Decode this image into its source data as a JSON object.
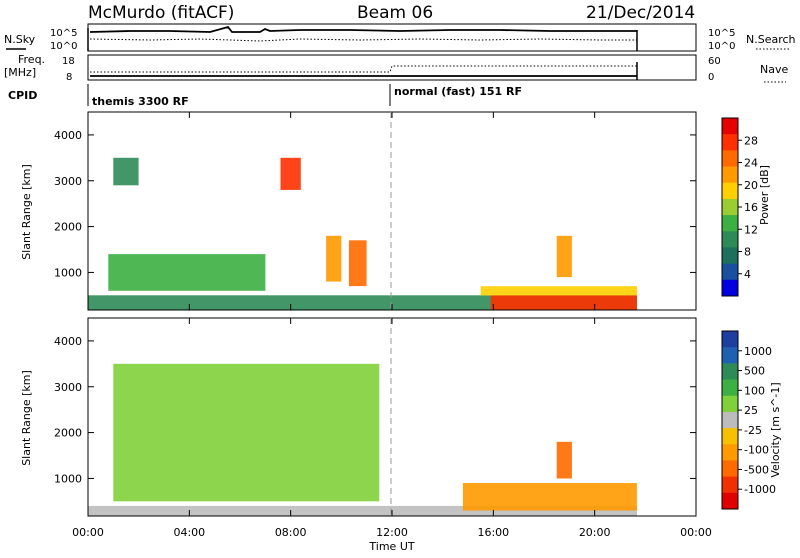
{
  "header": {
    "station": "McMurdo (fitACF)",
    "beam": "Beam 06",
    "date": "21/Dec/2014"
  },
  "strips": {
    "noise": {
      "left_label": "N.Sky",
      "right_label": "N.Search",
      "left_ticks": [
        "10^5",
        "10^0"
      ],
      "right_ticks": [
        "10^5",
        "10^0"
      ]
    },
    "freq": {
      "left_label_top": "Freq.",
      "left_label_bottom": "[MHz]",
      "right_label": "Nave",
      "left_ticks": [
        "18",
        "8"
      ],
      "right_ticks": [
        "60",
        "0"
      ]
    },
    "cpid": {
      "label": "CPID",
      "modes": [
        {
          "name": "themis 3300 RF",
          "start": "00:00",
          "end": "12:00"
        },
        {
          "name": "normal (fast) 151 RF",
          "start": "12:00",
          "end": "21:40"
        }
      ]
    }
  },
  "panels": {
    "power": {
      "ylabel": "Slant Range [km]",
      "cbar_label": "Power [dB]",
      "cbar_ticks": [
        "28",
        "24",
        "20",
        "16",
        "12",
        "8",
        "4"
      ],
      "cbar_colors": [
        "#e60000",
        "#ff3000",
        "#ff6a00",
        "#ff9a00",
        "#ffcf00",
        "#9acd32",
        "#3cb043",
        "#2e8b57",
        "#1e6f5c",
        "#1a4fa0",
        "#0000e0"
      ]
    },
    "velocity": {
      "ylabel": "Slant Range [km]",
      "cbar_label": "Velocity [m s^-1]",
      "cbar_ticks": [
        "1000",
        "500",
        "100",
        "25",
        "-25",
        "-100",
        "-500",
        "-1000"
      ],
      "cbar_colors": [
        "#1f3fa0",
        "#2060b0",
        "#2e8b57",
        "#3cb043",
        "#7fd03a",
        "#bcbcbc",
        "#f5c000",
        "#ff9a00",
        "#ff6a00",
        "#f03000",
        "#e00000"
      ]
    }
  },
  "x_axis": {
    "label": "Time UT",
    "ticks": [
      "00:00",
      "04:00",
      "08:00",
      "12:00",
      "16:00",
      "20:00",
      "00:00"
    ]
  },
  "chart_data": {
    "type": "heatmap",
    "title": "McMurdo (fitACF) Beam 06 21/Dec/2014",
    "xlabel": "Time UT",
    "ylabel": "Slant Range [km]",
    "xlim": [
      "00:00",
      "24:00"
    ],
    "ylim": [
      180,
      4500
    ],
    "y_ticks": [
      1000,
      2000,
      3000,
      4000
    ],
    "data_end_time": "21:40",
    "panels": [
      {
        "name": "Power [dB]",
        "range": [
          0,
          30
        ],
        "features": [
          {
            "label": "near-range band",
            "t_start": 0.0,
            "t_end": 21.67,
            "r_start": 180,
            "r_end": 500,
            "value": 8
          },
          {
            "label": "strong near-range echo",
            "t_start": 15.9,
            "t_end": 21.67,
            "r_start": 180,
            "r_end": 500,
            "value": 28
          },
          {
            "label": "mid-range patch",
            "t_start": 15.5,
            "t_end": 21.67,
            "r_start": 500,
            "r_end": 700,
            "value": 18
          },
          {
            "label": "echo streak",
            "t_start": 7.6,
            "t_end": 8.4,
            "r_start": 2800,
            "r_end": 3500,
            "value": 26
          },
          {
            "label": "echo streak",
            "t_start": 10.3,
            "t_end": 11.0,
            "r_start": 700,
            "r_end": 1700,
            "value": 24
          },
          {
            "label": "echo streak",
            "t_start": 9.4,
            "t_end": 10.0,
            "r_start": 800,
            "r_end": 1800,
            "value": 22
          },
          {
            "label": "scatter region",
            "t_start": 0.8,
            "t_end": 7.0,
            "r_start": 600,
            "r_end": 1400,
            "value": 12
          },
          {
            "label": "scatter region",
            "t_start": 1.0,
            "t_end": 2.0,
            "r_start": 2900,
            "r_end": 3500,
            "value": 8
          },
          {
            "label": "late echo",
            "t_start": 18.5,
            "t_end": 19.1,
            "r_start": 900,
            "r_end": 1800,
            "value": 20
          }
        ]
      },
      {
        "name": "Velocity [m s^-1]",
        "range": [
          -1000,
          1000
        ],
        "features": [
          {
            "label": "ground scatter band",
            "t_start": 0.0,
            "t_end": 21.67,
            "r_start": 180,
            "r_end": 400,
            "value": 0
          },
          {
            "label": "negative velocity region",
            "t_start": 14.8,
            "t_end": 21.67,
            "r_start": 300,
            "r_end": 900,
            "value": -300
          },
          {
            "label": "positive velocity region",
            "t_start": 1.0,
            "t_end": 11.5,
            "r_start": 500,
            "r_end": 3500,
            "value": 150
          },
          {
            "label": "late echo",
            "t_start": 18.5,
            "t_end": 19.1,
            "r_start": 1000,
            "r_end": 1800,
            "value": -600
          }
        ]
      }
    ]
  }
}
